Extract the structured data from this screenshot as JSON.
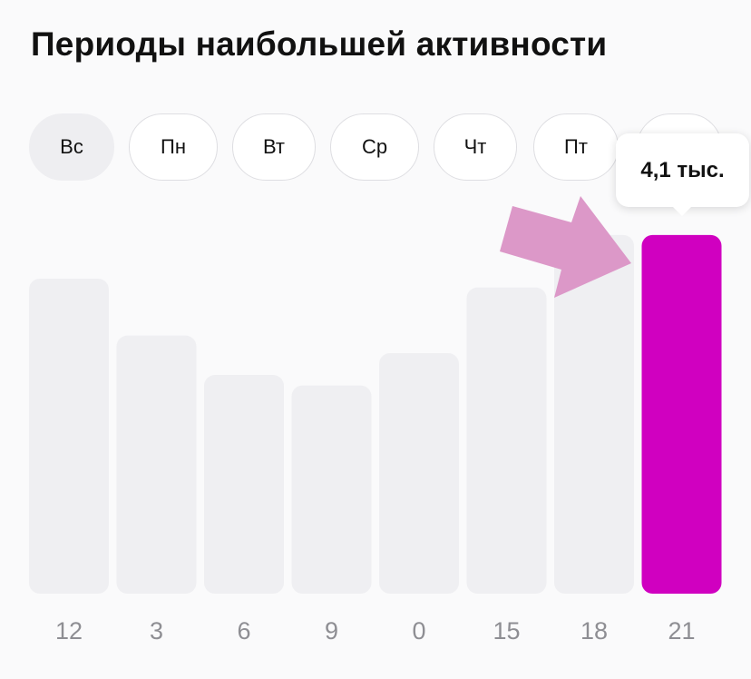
{
  "title": "Периоды наибольшей активности",
  "days": [
    {
      "label": "Вс",
      "active": true
    },
    {
      "label": "Пн",
      "active": false
    },
    {
      "label": "Вт",
      "active": false
    },
    {
      "label": "Ср",
      "active": false
    },
    {
      "label": "Чт",
      "active": false
    },
    {
      "label": "Пт",
      "active": false
    },
    {
      "label": "",
      "active": false
    }
  ],
  "tooltip": {
    "value": "4,1 тыс."
  },
  "colors": {
    "bar": "#efeff2",
    "highlight": "#d000c0",
    "tick": "#8e8e93",
    "arrow": "#dc98c8"
  },
  "chart_data": {
    "type": "bar",
    "categories": [
      "12",
      "3",
      "6",
      "9",
      "0",
      "15",
      "18",
      "21"
    ],
    "values": [
      3.6,
      2.95,
      2.5,
      2.38,
      2.75,
      3.5,
      4.1,
      4.1
    ],
    "highlight_index": 7,
    "ylim": [
      0,
      4.15
    ],
    "title": "",
    "xlabel": "",
    "ylabel": ""
  }
}
